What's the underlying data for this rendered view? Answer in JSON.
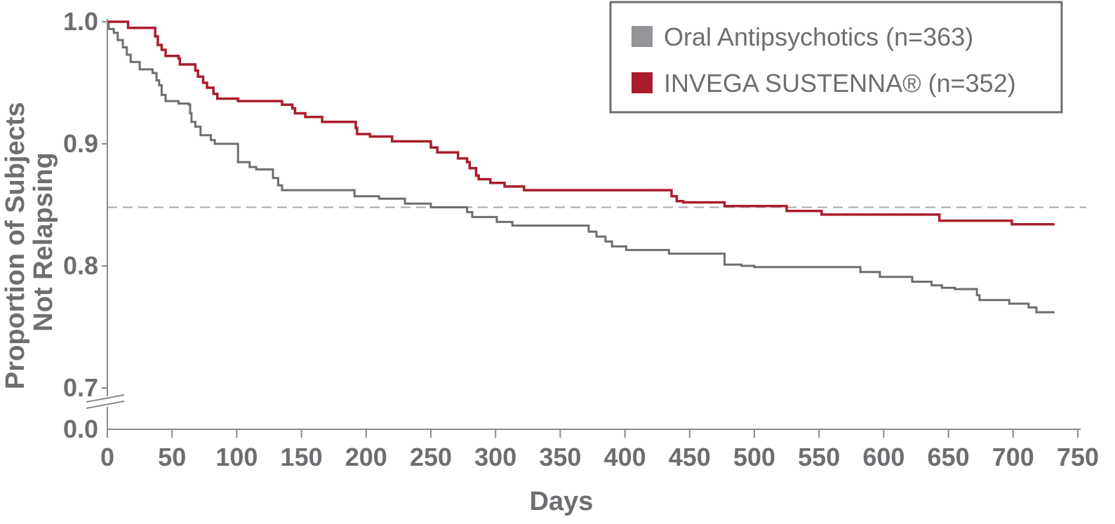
{
  "chart_data": {
    "type": "line",
    "step": true,
    "xlabel": "Days",
    "ylabel_lines": [
      "Proportion of Subjects",
      "Not Relapsing"
    ],
    "xlim": [
      0,
      750
    ],
    "x_ticks": [
      0,
      50,
      100,
      150,
      200,
      250,
      300,
      350,
      400,
      450,
      500,
      550,
      600,
      650,
      700,
      750
    ],
    "y_ticks": [
      "0.0",
      "0.7",
      "0.8",
      "0.9",
      "1.0"
    ],
    "ylim_displayed": [
      0.7,
      1.0
    ],
    "y_axis_break": true,
    "reference_line": {
      "y": 0.848,
      "style": "dashed"
    },
    "legend_position": "top-right",
    "series": [
      {
        "name": "Oral Antipsychotics (n=363)",
        "color": "#6d6e71",
        "legend_color": "#939598",
        "points": [
          [
            0,
            1.0
          ],
          [
            1,
            0.994
          ],
          [
            5,
            0.991
          ],
          [
            8,
            0.985
          ],
          [
            12,
            0.979
          ],
          [
            15,
            0.973
          ],
          [
            18,
            0.967
          ],
          [
            25,
            0.961
          ],
          [
            35,
            0.958
          ],
          [
            38,
            0.952
          ],
          [
            40,
            0.948
          ],
          [
            42,
            0.94
          ],
          [
            45,
            0.935
          ],
          [
            55,
            0.933
          ],
          [
            63,
            0.932
          ],
          [
            64,
            0.925
          ],
          [
            65,
            0.918
          ],
          [
            68,
            0.914
          ],
          [
            72,
            0.907
          ],
          [
            80,
            0.903
          ],
          [
            83,
            0.9
          ],
          [
            100,
            0.9
          ],
          [
            101,
            0.885
          ],
          [
            110,
            0.881
          ],
          [
            115,
            0.879
          ],
          [
            125,
            0.879
          ],
          [
            128,
            0.872
          ],
          [
            132,
            0.866
          ],
          [
            135,
            0.862
          ],
          [
            190,
            0.862
          ],
          [
            191,
            0.857
          ],
          [
            210,
            0.855
          ],
          [
            230,
            0.851
          ],
          [
            250,
            0.848
          ],
          [
            275,
            0.848
          ],
          [
            278,
            0.844
          ],
          [
            282,
            0.84
          ],
          [
            300,
            0.84
          ],
          [
            301,
            0.836
          ],
          [
            312,
            0.836
          ],
          [
            313,
            0.833
          ],
          [
            368,
            0.833
          ],
          [
            372,
            0.828
          ],
          [
            378,
            0.824
          ],
          [
            385,
            0.82
          ],
          [
            390,
            0.816
          ],
          [
            400,
            0.816
          ],
          [
            401,
            0.813
          ],
          [
            433,
            0.813
          ],
          [
            434,
            0.81
          ],
          [
            475,
            0.81
          ],
          [
            477,
            0.801
          ],
          [
            490,
            0.8
          ],
          [
            500,
            0.799
          ],
          [
            580,
            0.799
          ],
          [
            582,
            0.795
          ],
          [
            595,
            0.795
          ],
          [
            597,
            0.791
          ],
          [
            620,
            0.791
          ],
          [
            622,
            0.787
          ],
          [
            635,
            0.787
          ],
          [
            637,
            0.784
          ],
          [
            645,
            0.782
          ],
          [
            655,
            0.781
          ],
          [
            670,
            0.781
          ],
          [
            672,
            0.776
          ],
          [
            674,
            0.772
          ],
          [
            695,
            0.772
          ],
          [
            697,
            0.769
          ],
          [
            710,
            0.769
          ],
          [
            712,
            0.766
          ],
          [
            718,
            0.762
          ],
          [
            732,
            0.762
          ]
        ]
      },
      {
        "name": "INVEGA SUSTENNA® (n=352)",
        "color": "#ab1d2d",
        "legend_color": "#ab1d2d",
        "points": [
          [
            0,
            1.0
          ],
          [
            15,
            1.0
          ],
          [
            16,
            0.995
          ],
          [
            36,
            0.995
          ],
          [
            37,
            0.988
          ],
          [
            39,
            0.981
          ],
          [
            42,
            0.977
          ],
          [
            45,
            0.972
          ],
          [
            55,
            0.97
          ],
          [
            56,
            0.965
          ],
          [
            65,
            0.965
          ],
          [
            68,
            0.96
          ],
          [
            70,
            0.955
          ],
          [
            74,
            0.95
          ],
          [
            77,
            0.946
          ],
          [
            82,
            0.941
          ],
          [
            85,
            0.937
          ],
          [
            100,
            0.937
          ],
          [
            101,
            0.935
          ],
          [
            134,
            0.935
          ],
          [
            135,
            0.932
          ],
          [
            143,
            0.929
          ],
          [
            145,
            0.925
          ],
          [
            152,
            0.925
          ],
          [
            153,
            0.922
          ],
          [
            163,
            0.922
          ],
          [
            166,
            0.918
          ],
          [
            190,
            0.918
          ],
          [
            192,
            0.913
          ],
          [
            193,
            0.908
          ],
          [
            202,
            0.908
          ],
          [
            203,
            0.906
          ],
          [
            219,
            0.906
          ],
          [
            220,
            0.902
          ],
          [
            247,
            0.902
          ],
          [
            250,
            0.897
          ],
          [
            255,
            0.893
          ],
          [
            270,
            0.893
          ],
          [
            271,
            0.888
          ],
          [
            278,
            0.885
          ],
          [
            280,
            0.88
          ],
          [
            285,
            0.874
          ],
          [
            287,
            0.871
          ],
          [
            295,
            0.871
          ],
          [
            296,
            0.868
          ],
          [
            305,
            0.868
          ],
          [
            307,
            0.865
          ],
          [
            320,
            0.865
          ],
          [
            322,
            0.862
          ],
          [
            434,
            0.862
          ],
          [
            436,
            0.857
          ],
          [
            440,
            0.853
          ],
          [
            445,
            0.852
          ],
          [
            475,
            0.852
          ],
          [
            477,
            0.849
          ],
          [
            523,
            0.849
          ],
          [
            525,
            0.845
          ],
          [
            550,
            0.845
          ],
          [
            552,
            0.842
          ],
          [
            642,
            0.842
          ],
          [
            643,
            0.837
          ],
          [
            697,
            0.837
          ],
          [
            699,
            0.834
          ],
          [
            732,
            0.834
          ]
        ]
      }
    ]
  }
}
